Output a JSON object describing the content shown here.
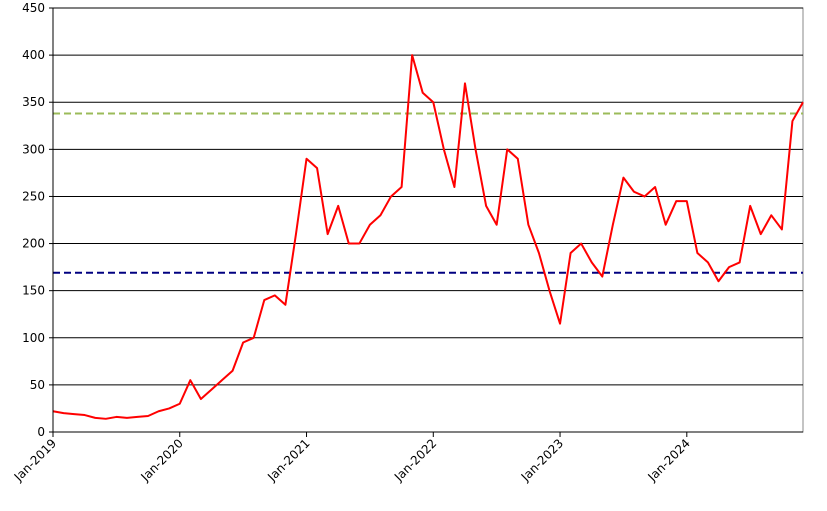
{
  "chart_data": {
    "type": "line",
    "x": [
      "2019-01",
      "2019-02",
      "2019-03",
      "2019-04",
      "2019-05",
      "2019-06",
      "2019-07",
      "2019-08",
      "2019-09",
      "2019-10",
      "2019-11",
      "2019-12",
      "2020-01",
      "2020-02",
      "2020-03",
      "2020-04",
      "2020-05",
      "2020-06",
      "2020-07",
      "2020-08",
      "2020-09",
      "2020-10",
      "2020-11",
      "2020-12",
      "2021-01",
      "2021-02",
      "2021-03",
      "2021-04",
      "2021-05",
      "2021-06",
      "2021-07",
      "2021-08",
      "2021-09",
      "2021-10",
      "2021-11",
      "2021-12",
      "2022-01",
      "2022-02",
      "2022-03",
      "2022-04",
      "2022-05",
      "2022-06",
      "2022-07",
      "2022-08",
      "2022-09",
      "2022-10",
      "2022-11",
      "2022-12",
      "2023-01",
      "2023-02",
      "2023-03",
      "2023-04",
      "2023-05",
      "2023-06",
      "2023-07",
      "2023-08",
      "2023-09",
      "2023-10",
      "2023-11",
      "2023-12",
      "2024-01",
      "2024-02",
      "2024-03",
      "2024-04",
      "2024-05",
      "2024-06",
      "2024-07",
      "2024-08",
      "2024-09",
      "2024-10",
      "2024-11",
      "2024-12"
    ],
    "series": [
      {
        "color": "#ff0000",
        "values": [
          22,
          20,
          19,
          18,
          15,
          14,
          16,
          15,
          16,
          17,
          22,
          25,
          30,
          55,
          35,
          45,
          55,
          65,
          95,
          100,
          140,
          145,
          135,
          210,
          290,
          280,
          210,
          240,
          200,
          200,
          220,
          230,
          250,
          260,
          400,
          360,
          350,
          300,
          260,
          370,
          300,
          240,
          220,
          300,
          290,
          220,
          190,
          150,
          115,
          190,
          200,
          180,
          165,
          220,
          270,
          255,
          250,
          260,
          220,
          245,
          245,
          190,
          180,
          160,
          175,
          180,
          240,
          210,
          230,
          215,
          330,
          350
        ]
      }
    ],
    "hlines": [
      {
        "value": 338,
        "color": "#9bbb59"
      },
      {
        "value": 169,
        "color": "#000080"
      }
    ],
    "xlim": [
      "2019-01",
      "2024-12"
    ],
    "xticks": [
      {
        "value": "2019-01",
        "label": "Jan-2019"
      },
      {
        "value": "2020-01",
        "label": "Jan-2020"
      },
      {
        "value": "2021-01",
        "label": "Jan-2021"
      },
      {
        "value": "2022-01",
        "label": "Jan-2022"
      },
      {
        "value": "2023-01",
        "label": "Jan-2023"
      },
      {
        "value": "2024-01",
        "label": "Jan-2024"
      }
    ],
    "ylim": [
      0,
      450
    ],
    "yticks": [
      0,
      50,
      100,
      150,
      200,
      250,
      300,
      350,
      400,
      450
    ],
    "grid": true
  }
}
